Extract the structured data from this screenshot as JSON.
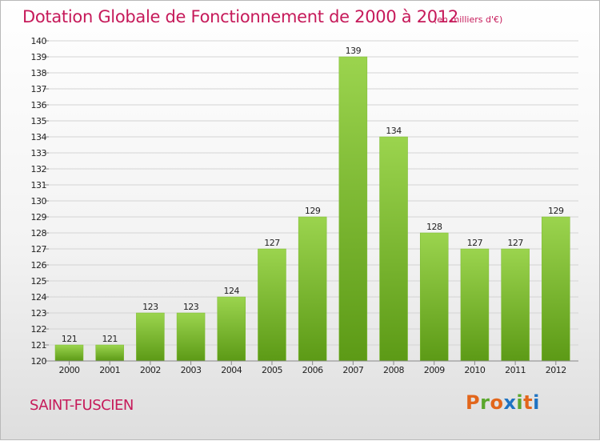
{
  "header": {
    "title": "Dotation Globale de Fonctionnement de 2000 à 2012",
    "unit": "(en milliers d'€)"
  },
  "footer": {
    "commune": "SAINT-FUSCIEN",
    "logo_letters": [
      "P",
      "r",
      "o",
      "x",
      "i",
      "t",
      "i"
    ],
    "logo_colors": [
      "#e2661b",
      "#5aa72c",
      "#e2661b",
      "#1f73c2",
      "#5aa72c",
      "#e2661b",
      "#1f73c2"
    ]
  },
  "chart_data": {
    "type": "bar",
    "categories": [
      "2000",
      "2001",
      "2002",
      "2003",
      "2004",
      "2005",
      "2006",
      "2007",
      "2008",
      "2009",
      "2010",
      "2011",
      "2012"
    ],
    "values": [
      121,
      121,
      123,
      123,
      124,
      127,
      129,
      139,
      134,
      128,
      127,
      127,
      129
    ],
    "value_labels": [
      "121",
      "121",
      "123",
      "123",
      "124",
      "127",
      "129",
      "139",
      "134",
      "128",
      "127",
      "127",
      "129"
    ],
    "ylim": [
      120,
      140
    ],
    "yticks": [
      120,
      121,
      122,
      123,
      124,
      125,
      126,
      127,
      128,
      129,
      130,
      131,
      132,
      133,
      134,
      135,
      136,
      137,
      138,
      139,
      140
    ],
    "ytick_labels": [
      "120",
      "121",
      "122",
      "123",
      "124",
      "125",
      "126",
      "127",
      "128",
      "129",
      "130",
      "131",
      "132",
      "133",
      "134",
      "135",
      "136",
      "137",
      "138",
      "139",
      "140"
    ],
    "grid": true,
    "colors": {
      "bar_top": "#9bd44e",
      "bar_bottom": "#5c9a16",
      "grid": "#d4d4d4",
      "axis": "#888888",
      "text": "#222222",
      "accent": "#c61a5a"
    }
  }
}
